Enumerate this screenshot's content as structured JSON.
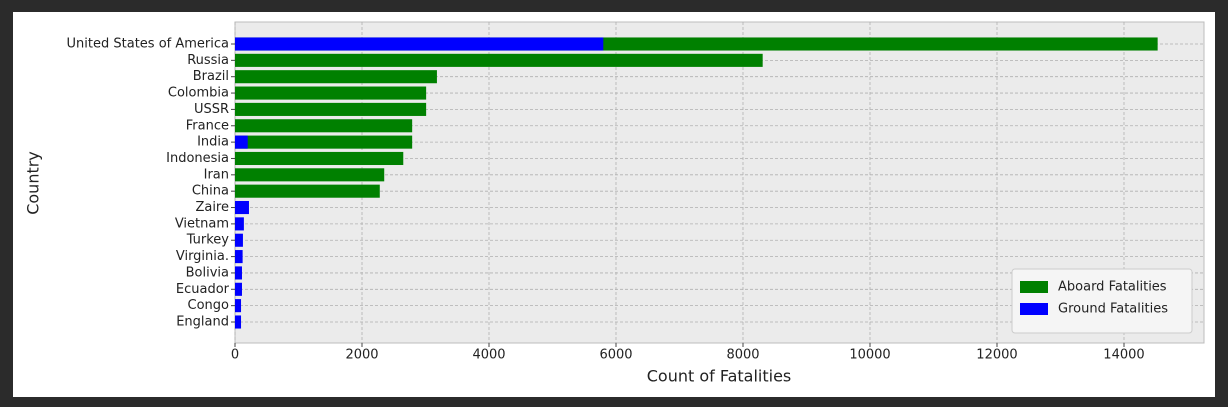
{
  "chart_data": {
    "type": "bar",
    "orientation": "horizontal",
    "x_label": "Count of Fatalities",
    "y_label": "Country",
    "categories": [
      "United States of America",
      "Russia",
      "Brazil",
      "Colombia",
      "USSR",
      "France",
      "India",
      "Indonesia",
      "Iran",
      "China",
      "Zaire",
      "Vietnam",
      "Turkey",
      "Virginia.",
      "Bolivia",
      "Ecuador",
      "Congo",
      "England"
    ],
    "series": [
      {
        "name": "Aboard Fatalities",
        "color": "#008000",
        "values": [
          14530,
          8310,
          3180,
          3010,
          3010,
          2790,
          2790,
          2650,
          2350,
          2280,
          0,
          0,
          0,
          0,
          0,
          0,
          0,
          0
        ]
      },
      {
        "name": "Ground Fatalities",
        "color": "#0000ff",
        "values": [
          5800,
          0,
          0,
          0,
          0,
          0,
          200,
          0,
          0,
          0,
          220,
          140,
          125,
          120,
          110,
          110,
          95,
          95
        ]
      }
    ],
    "xlim": [
      0,
      15260
    ],
    "xticks": [
      0,
      2000,
      4000,
      6000,
      8000,
      10000,
      12000,
      14000
    ],
    "grid": true,
    "legend": "lower right"
  }
}
